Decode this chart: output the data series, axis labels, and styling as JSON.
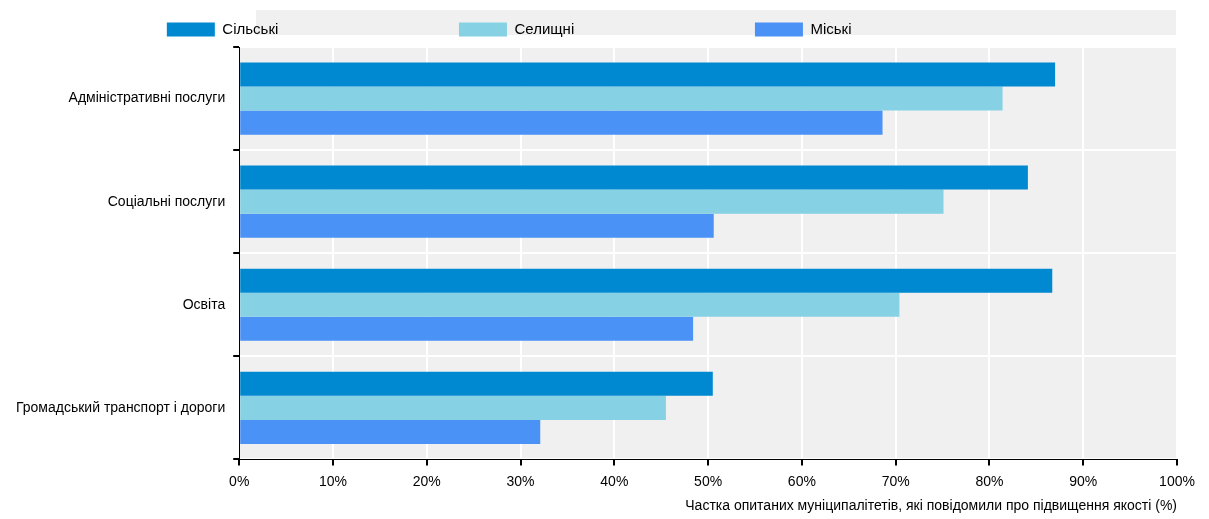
{
  "chart_data": {
    "type": "bar",
    "orientation": "horizontal",
    "xlabel": "Частка опитаних муніципалітетів, які повідомили про підвищення якості (%)",
    "categories": [
      "Адміністративні послуги",
      "Соціальні послуги",
      "Освіта",
      "Громадський транспорт і дороги"
    ],
    "series": [
      {
        "name": "Сільські",
        "color": "#0089d1",
        "values": [
          87.0,
          84.1,
          86.7,
          50.5
        ]
      },
      {
        "name": "Селищні",
        "color": "#86d1e4",
        "values": [
          81.4,
          75.1,
          70.4,
          45.5
        ]
      },
      {
        "name": "Міські",
        "color": "#4a92f5",
        "values": [
          68.6,
          50.6,
          48.4,
          32.1
        ]
      }
    ],
    "xlim": [
      0,
      100
    ],
    "xticks": [
      {
        "value": 0,
        "label": "0%"
      },
      {
        "value": 10,
        "label": "10%"
      },
      {
        "value": 20,
        "label": "20%"
      },
      {
        "value": 30,
        "label": "30%"
      },
      {
        "value": 40,
        "label": "40%"
      },
      {
        "value": 50,
        "label": "50%"
      },
      {
        "value": 60,
        "label": "60%"
      },
      {
        "value": 70,
        "label": "70%"
      },
      {
        "value": 80,
        "label": "80%"
      },
      {
        "value": 90,
        "label": "90%"
      },
      {
        "value": 100,
        "label": "100%"
      }
    ],
    "grid": true,
    "legend": "top"
  }
}
